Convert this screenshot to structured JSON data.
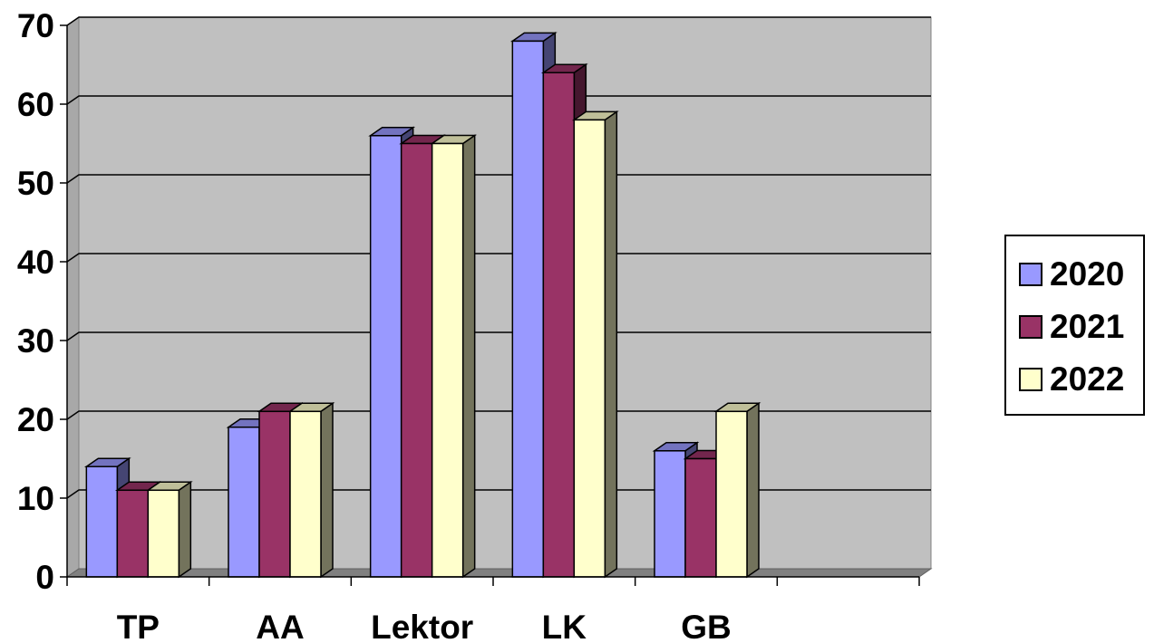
{
  "chart_data": {
    "type": "bar",
    "categories": [
      "TP",
      "AA",
      "Lektor",
      "LK",
      "GB"
    ],
    "series": [
      {
        "name": "2020",
        "values": [
          14,
          19,
          56,
          68,
          16
        ],
        "color": "#9999ff"
      },
      {
        "name": "2021",
        "values": [
          11,
          21,
          55,
          64,
          15
        ],
        "color": "#993366"
      },
      {
        "name": "2022",
        "values": [
          11,
          21,
          55,
          58,
          21
        ],
        "color": "#ffffcc"
      }
    ],
    "yticks": [
      "0",
      "10",
      "20",
      "30",
      "40",
      "50",
      "60",
      "70"
    ],
    "ylim": [
      0,
      70
    ],
    "grid": true,
    "legend_position": "right",
    "colors": {
      "plot_background": "#c0c0c0",
      "floor": "#808080",
      "gridline": "#000000"
    }
  }
}
